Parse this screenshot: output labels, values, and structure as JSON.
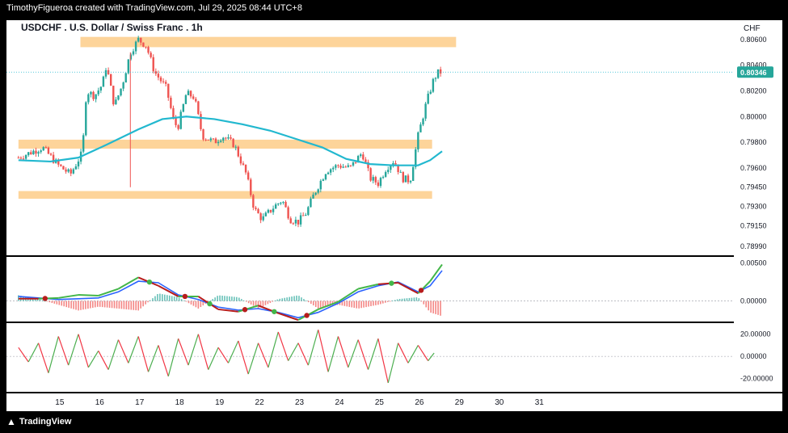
{
  "header": {
    "credit": "TimothyFigueroa created with TradingView.com, Jul 29, 2025 08:44 UTC+8",
    "title": "USDCHF . U.S. Dollar / Swiss Franc . 1h",
    "currency": "CHF",
    "brand": "TradingView"
  },
  "colors": {
    "background": "#ffffff",
    "zone": "#fdd49a",
    "ma": "#22b8cf",
    "up": "#26a69a",
    "down": "#ef5350",
    "price_tag": "#26a69a",
    "macd": "#2962ff",
    "signal_up": "#43b649",
    "signal_down": "#b71c1c",
    "osc_up": "#4caf50",
    "osc_down": "#f23645"
  },
  "chart_data": [
    {
      "type": "candlestick",
      "pane": "price",
      "title": "USDCHF . U.S. Dollar / Swiss Franc . 1h",
      "x_ticks": [
        "15",
        "16",
        "17",
        "18",
        "19",
        "22",
        "23",
        "24",
        "25",
        "26",
        "29",
        "30",
        "31"
      ],
      "y_ticks": [
        "0.80600",
        "0.80400",
        "0.80200",
        "0.80000",
        "0.79800",
        "0.79600",
        "0.79450",
        "0.79300",
        "0.79150",
        "0.78990"
      ],
      "ylim": [
        0.7892,
        0.8075
      ],
      "last_price": "0.80346",
      "last_value": 0.80346,
      "zones": [
        {
          "x_from": 15.55,
          "x_to": 24.95,
          "low": 0.8054,
          "high": 0.8062
        },
        {
          "x_from": 14.0,
          "x_to": 24.35,
          "low": 0.7975,
          "high": 0.7982
        },
        {
          "x_from": 14.0,
          "x_to": 24.35,
          "low": 0.7936,
          "high": 0.7942
        }
      ],
      "ma": {
        "name": "Moving Average",
        "x": [
          14.0,
          14.8,
          15.5,
          16.2,
          17.0,
          17.6,
          18.2,
          18.9,
          19.6,
          20.3,
          21.0,
          21.6,
          22.2,
          22.8,
          23.4,
          24.0,
          24.3,
          24.6
        ],
        "y": [
          0.7966,
          0.7965,
          0.7968,
          0.7978,
          0.799,
          0.7998,
          0.8,
          0.7998,
          0.7994,
          0.7989,
          0.7982,
          0.7976,
          0.7967,
          0.7963,
          0.7962,
          0.7962,
          0.7966,
          0.7973
        ]
      },
      "path": {
        "x": [
          14.0,
          14.3,
          14.6,
          15.0,
          15.3,
          15.6,
          15.7,
          15.8,
          15.9,
          16.1,
          16.2,
          16.4,
          16.6,
          16.8,
          17.0,
          17.2,
          17.4,
          17.7,
          17.9,
          18.0,
          18.2,
          18.4,
          18.6,
          18.9,
          19.1,
          19.4,
          19.7,
          19.9,
          20.1,
          20.4,
          20.6,
          20.8,
          21.0,
          21.2,
          21.4,
          21.7,
          22.0,
          22.3,
          22.6,
          22.8,
          23.0,
          23.2,
          23.4,
          23.6,
          23.8,
          24.0,
          24.2,
          24.4,
          24.5,
          24.6
        ],
        "y": [
          0.7968,
          0.7972,
          0.7976,
          0.7962,
          0.7955,
          0.7972,
          0.802,
          0.8018,
          0.8016,
          0.8025,
          0.804,
          0.8008,
          0.8025,
          0.805,
          0.806,
          0.8055,
          0.8035,
          0.8022,
          0.7994,
          0.7993,
          0.8018,
          0.8015,
          0.7985,
          0.798,
          0.7985,
          0.7978,
          0.7955,
          0.7928,
          0.792,
          0.793,
          0.7935,
          0.792,
          0.7918,
          0.7925,
          0.794,
          0.7958,
          0.7962,
          0.796,
          0.7972,
          0.7952,
          0.7948,
          0.796,
          0.7966,
          0.7952,
          0.795,
          0.7985,
          0.801,
          0.803,
          0.8034,
          0.8035
        ]
      }
    },
    {
      "type": "line",
      "pane": "macd",
      "y_ticks": [
        "0.00500",
        "0.00000"
      ],
      "ylim": [
        -0.0027,
        0.0058
      ],
      "x": [
        14.0,
        14.5,
        15.0,
        15.5,
        16.0,
        16.5,
        17.0,
        17.5,
        18.0,
        18.5,
        19.0,
        19.5,
        20.0,
        20.5,
        21.0,
        21.5,
        22.0,
        22.5,
        23.0,
        23.5,
        24.0,
        24.3,
        24.6
      ],
      "series": [
        {
          "name": "MACD",
          "values": [
            0.0006,
            0.0004,
            0.0002,
            0.0003,
            0.0004,
            0.0012,
            0.0026,
            0.0024,
            0.0008,
            0.0002,
            -0.0008,
            -0.0012,
            -0.001,
            -0.0015,
            -0.0022,
            -0.0015,
            -0.0003,
            0.0012,
            0.002,
            0.0025,
            0.0012,
            0.002,
            0.004
          ]
        },
        {
          "name": "Signal",
          "values": [
            0.0003,
            0.0003,
            0.0004,
            0.0008,
            0.0007,
            0.0016,
            0.0031,
            0.002,
            0.0006,
            0.0006,
            -0.0011,
            -0.0014,
            -0.0006,
            -0.0016,
            -0.0025,
            -0.0011,
            -0.0001,
            0.0016,
            0.0022,
            0.0024,
            0.001,
            0.0026,
            0.0048
          ]
        }
      ]
    },
    {
      "type": "line",
      "pane": "oscillator",
      "y_ticks": [
        "20.00000",
        "0.00000",
        "-20.00000"
      ],
      "ylim": [
        -32,
        30
      ],
      "x": [
        14.0,
        14.25,
        14.5,
        14.75,
        15.0,
        15.25,
        15.5,
        15.75,
        16.0,
        16.25,
        16.5,
        16.75,
        17.0,
        17.25,
        17.5,
        17.75,
        18.0,
        18.25,
        18.5,
        18.75,
        19.0,
        19.25,
        19.5,
        19.75,
        20.0,
        20.25,
        20.5,
        20.75,
        21.0,
        21.25,
        21.5,
        21.75,
        22.0,
        22.25,
        22.5,
        22.75,
        23.0,
        23.25,
        23.5,
        23.75,
        24.0,
        24.25,
        24.4
      ],
      "values": [
        8,
        -5,
        12,
        -15,
        18,
        -8,
        20,
        -10,
        5,
        -12,
        15,
        -6,
        18,
        -14,
        10,
        -18,
        16,
        -8,
        20,
        -12,
        8,
        -6,
        14,
        -16,
        12,
        -10,
        22,
        -4,
        12,
        -8,
        24,
        -14,
        18,
        -10,
        15,
        -12,
        16,
        -24,
        12,
        -6,
        10,
        -4,
        3
      ]
    }
  ]
}
